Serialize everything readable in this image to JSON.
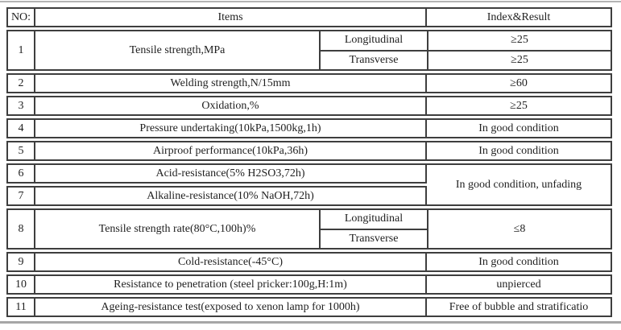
{
  "colors": {
    "table_border": "#3e3e3e",
    "text": "#1f1f1f",
    "top_rule": "#b3b3b3",
    "bottom_rule": "#a6a6a6",
    "background": "#ffffff"
  },
  "table": {
    "header": {
      "no": "NO:",
      "items": "Items",
      "result": "Index&Result"
    },
    "rows": {
      "r1": {
        "no": "1",
        "item": "Tensile strength,MPa",
        "sub1_label": "Longitudinal",
        "sub1_result": "≥25",
        "sub2_label": "Transverse",
        "sub2_result": "≥25"
      },
      "r2": {
        "no": "2",
        "item": "Welding strength,N/15mm",
        "result": "≥60"
      },
      "r3": {
        "no": "3",
        "item": "Oxidation,%",
        "result": "≥25"
      },
      "r4": {
        "no": "4",
        "item": "Pressure undertaking(10kPa,1500kg,1h)",
        "result": "In good condition"
      },
      "r5": {
        "no": "5",
        "item": "Airproof performance(10kPa,36h)",
        "result": "In good condition"
      },
      "r6": {
        "no": "6",
        "item": "Acid-resistance(5% H2SO3,72h)"
      },
      "r7": {
        "no": "7",
        "item": "Alkaline-resistance(10% NaOH,72h)"
      },
      "r6_7_merged_result": "In good condition, unfading",
      "r8": {
        "no": "8",
        "item": "Tensile strength rate(80°C,100h)%",
        "sub1_label": "Longitudinal",
        "sub2_label": "Transverse",
        "result": "≤8"
      },
      "r9": {
        "no": "9",
        "item": "Cold-resistance(-45°C)",
        "result": "In good condition"
      },
      "r10": {
        "no": "10",
        "item": "Resistance to penetration (steel pricker:100g,H:1m)",
        "result": "unpierced"
      },
      "r11": {
        "no": "11",
        "item": "Ageing-resistance test(exposed to xenon lamp for 1000h)",
        "result": "Free of bubble and stratificatio"
      }
    }
  }
}
